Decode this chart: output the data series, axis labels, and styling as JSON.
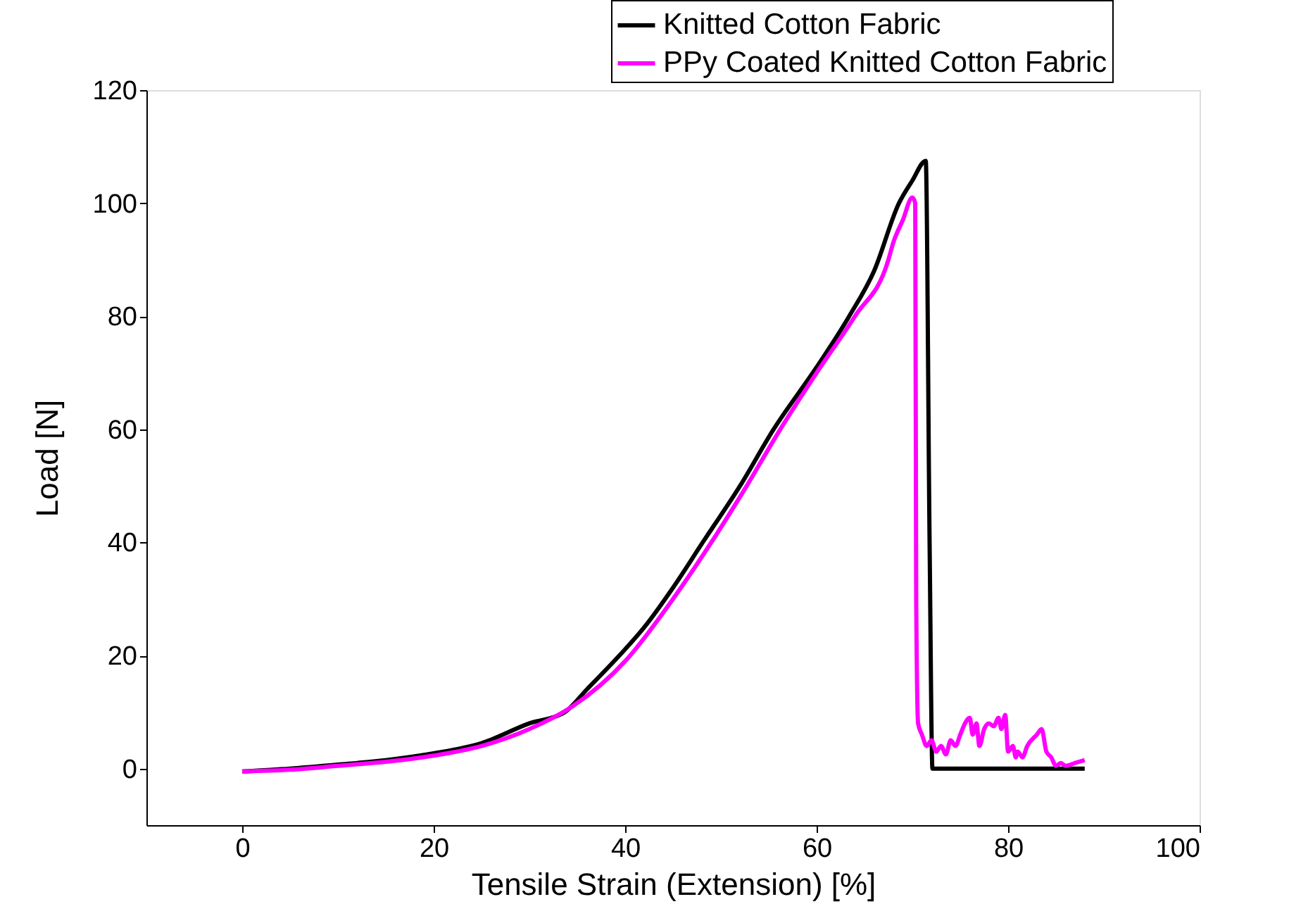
{
  "chart_data": {
    "type": "line",
    "xlabel": "Tensile Strain (Extension) [%]",
    "ylabel": "Load [N]",
    "xlim": [
      -10,
      100
    ],
    "xticks": [
      0,
      20,
      40,
      60,
      80,
      100
    ],
    "ylim": [
      -10,
      120
    ],
    "yticks": [
      0,
      20,
      40,
      60,
      80,
      100,
      120
    ],
    "grid": false,
    "legend": "top right",
    "line_style": "solid",
    "marker": "none",
    "series": [
      {
        "name": "Knitted Cotton Fabric",
        "color": "#000000",
        "x": [
          0,
          5,
          10,
          15,
          20,
          25,
          30,
          33.7,
          36,
          39.4,
          42,
          45,
          48.1,
          52,
          55.5,
          60,
          63.4,
          66,
          68.6,
          70,
          71.4,
          71.8,
          72.1,
          75,
          80,
          88
        ],
        "values": [
          -0.5,
          0,
          0.7,
          1.5,
          2.7,
          4.5,
          8,
          10,
          14,
          20,
          25,
          32,
          40,
          50,
          60,
          71,
          80,
          88,
          100,
          104,
          107.5,
          40,
          0,
          0,
          0,
          0
        ]
      },
      {
        "name": "PPy Coated Knitted Cotton Fabric",
        "color": "#ff00ff",
        "x": [
          0,
          5,
          10,
          15,
          20,
          25,
          30,
          34.5,
          40,
          45,
          49,
          52.7,
          56.2,
          60,
          64,
          67.5,
          68,
          69,
          70,
          70.3,
          70.4,
          70.6,
          71,
          71.5,
          72,
          72.5,
          73,
          73.5,
          74,
          74.5,
          75,
          75.5,
          76,
          76.3,
          76.7,
          77,
          77.5,
          78,
          78.5,
          79,
          79.3,
          79.7,
          80,
          80.5,
          80.8,
          81,
          81.5,
          82,
          83,
          83.5,
          84,
          84.5,
          85,
          85.5,
          86,
          87,
          88
        ],
        "values": [
          -0.5,
          -0.2,
          0.5,
          1.2,
          2.3,
          4,
          7,
          11,
          19,
          30,
          40,
          50,
          60,
          70,
          80,
          90,
          93,
          97,
          101,
          100,
          30,
          8,
          6,
          4,
          5,
          3,
          4,
          2.5,
          5,
          4,
          6,
          8,
          9,
          6,
          8,
          4,
          7,
          8,
          7.5,
          9,
          7,
          9.5,
          3,
          4,
          2,
          3,
          2,
          4,
          6,
          7,
          3,
          2,
          0.5,
          1,
          0.5,
          1,
          1.5
        ]
      }
    ]
  }
}
